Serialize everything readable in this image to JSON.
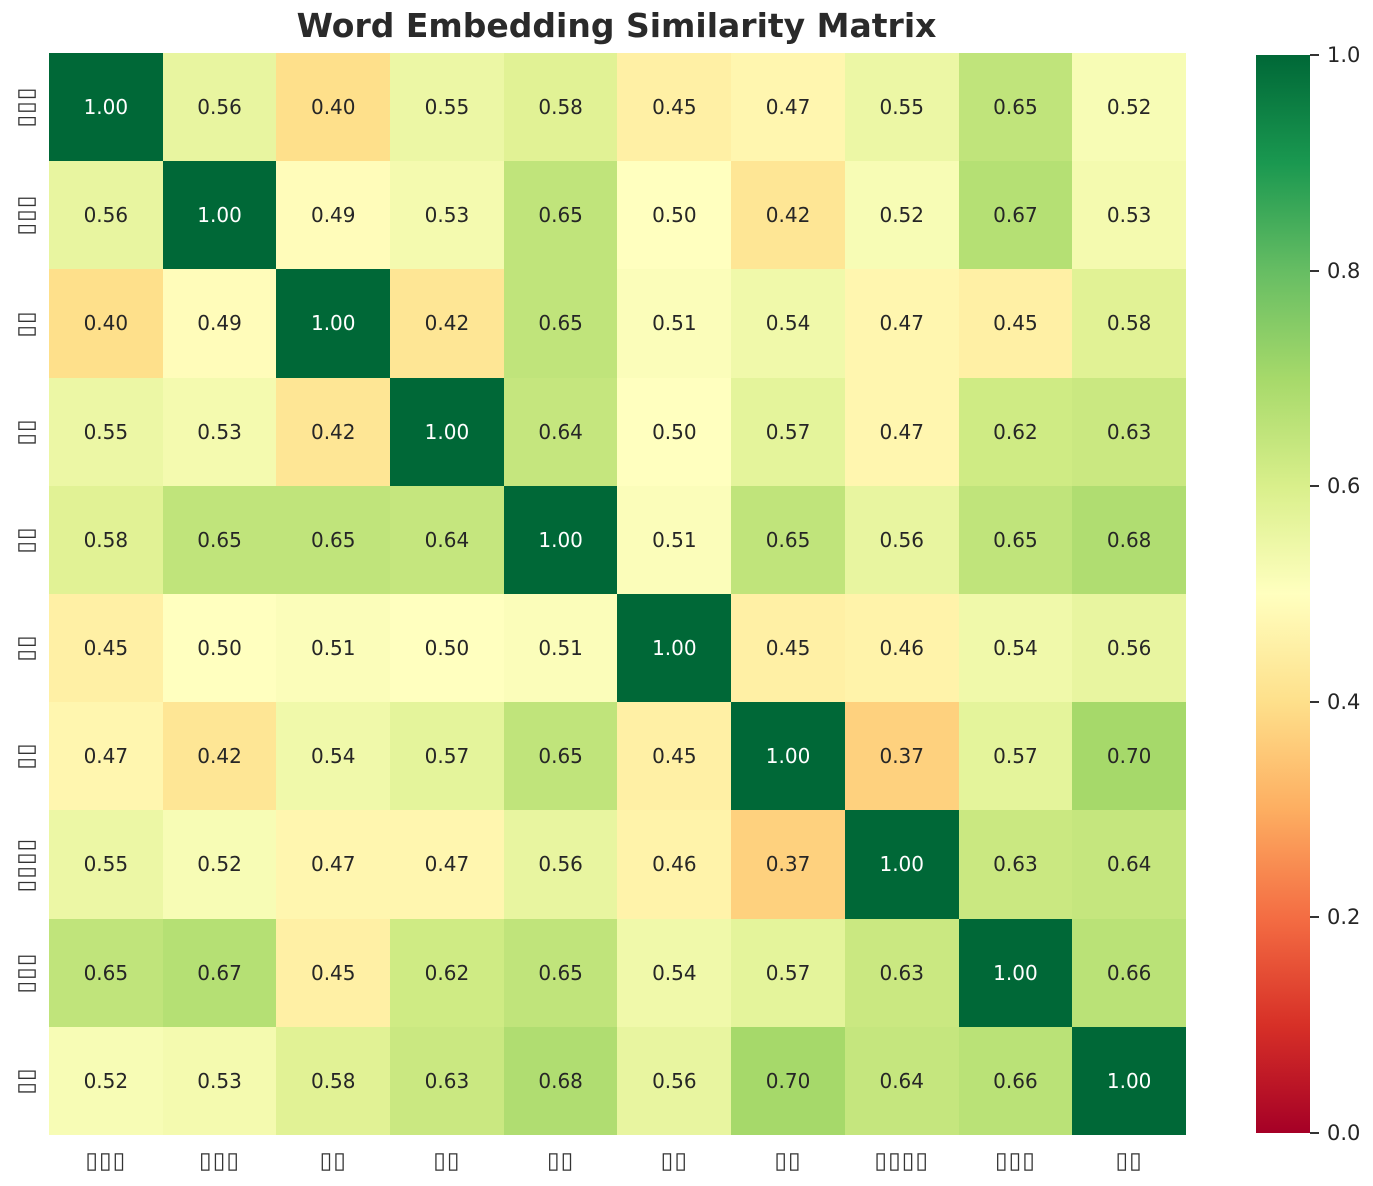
{
  "chart_data": {
    "type": "heatmap",
    "title": "Word Embedding Similarity Matrix",
    "x_labels": [
      "▯▯▯",
      "▯▯▯",
      "▯▯",
      "▯▯",
      "▯▯",
      "▯▯",
      "▯▯",
      "▯▯▯▯",
      "▯▯▯",
      "▯▯"
    ],
    "y_labels": [
      "▯▯▯",
      "▯▯▯",
      "▯▯",
      "▯▯",
      "▯▯",
      "▯▯",
      "▯▯",
      "▯▯▯▯",
      "▯▯▯",
      "▯▯"
    ],
    "matrix": [
      [
        1.0,
        0.56,
        0.4,
        0.55,
        0.58,
        0.45,
        0.47,
        0.55,
        0.65,
        0.52
      ],
      [
        0.56,
        1.0,
        0.49,
        0.53,
        0.65,
        0.5,
        0.42,
        0.52,
        0.67,
        0.53
      ],
      [
        0.4,
        0.49,
        1.0,
        0.42,
        0.65,
        0.51,
        0.54,
        0.47,
        0.45,
        0.58
      ],
      [
        0.55,
        0.53,
        0.42,
        1.0,
        0.64,
        0.5,
        0.57,
        0.47,
        0.62,
        0.63
      ],
      [
        0.58,
        0.65,
        0.65,
        0.64,
        1.0,
        0.51,
        0.65,
        0.56,
        0.65,
        0.68
      ],
      [
        0.45,
        0.5,
        0.51,
        0.5,
        0.51,
        1.0,
        0.45,
        0.46,
        0.54,
        0.56
      ],
      [
        0.47,
        0.42,
        0.54,
        0.57,
        0.65,
        0.45,
        1.0,
        0.37,
        0.57,
        0.7
      ],
      [
        0.55,
        0.52,
        0.47,
        0.47,
        0.56,
        0.46,
        0.37,
        1.0,
        0.63,
        0.64
      ],
      [
        0.65,
        0.67,
        0.45,
        0.62,
        0.65,
        0.54,
        0.57,
        0.63,
        1.0,
        0.66
      ],
      [
        0.52,
        0.53,
        0.58,
        0.63,
        0.68,
        0.56,
        0.7,
        0.64,
        0.66,
        1.0
      ]
    ],
    "annotation_format": "2dp",
    "vmin": 0.0,
    "vmax": 1.0,
    "colormap": "RdYlGn",
    "colorbar_ticks": [
      "1.0",
      "0.8",
      "0.6",
      "0.4",
      "0.2",
      "0.0"
    ],
    "legend_position": "right",
    "grid": false
  },
  "colors": {
    "background": "#ffffff",
    "title_text": "#2a2a2a",
    "annotation_dark": "#262626",
    "annotation_light": "#ffffff",
    "axis_label": "#333333",
    "tick_mark": "#333333",
    "colormap_stops": [
      "#a50026",
      "#d73027",
      "#f46d43",
      "#fdae61",
      "#fee08b",
      "#ffffbf",
      "#d9ef8b",
      "#a6d96a",
      "#66bd63",
      "#1a9850",
      "#006837"
    ]
  }
}
